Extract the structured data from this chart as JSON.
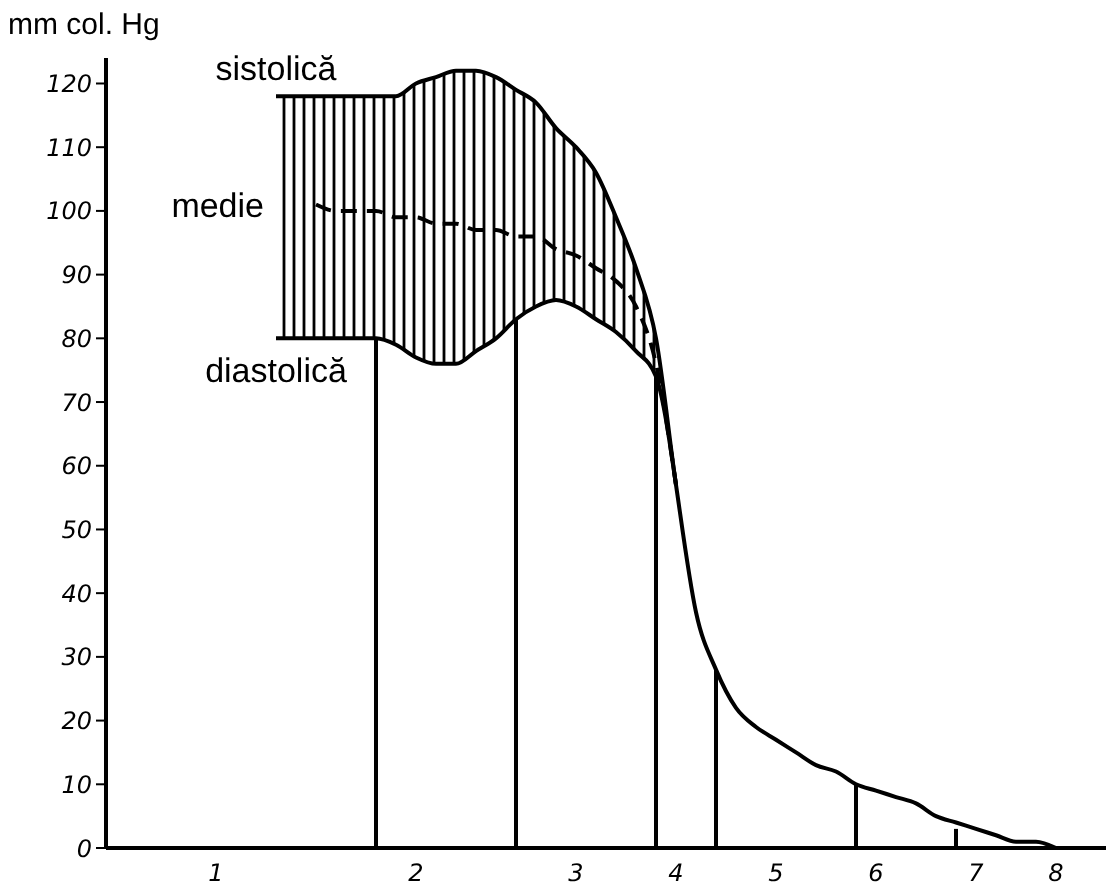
{
  "chart_data": {
    "type": "line",
    "ylabel": "mm col. Hg",
    "ylim": [
      0,
      124
    ],
    "yticks": [
      0,
      10,
      20,
      30,
      40,
      50,
      60,
      70,
      80,
      90,
      100,
      110,
      120
    ],
    "categories": [
      null,
      null,
      null,
      null,
      null,
      "1",
      null,
      null,
      null,
      null,
      null,
      null,
      null,
      null,
      null,
      "2",
      null,
      null,
      null,
      null,
      null,
      null,
      null,
      "3",
      null,
      null,
      null,
      null,
      "4",
      null,
      null,
      null,
      null,
      "5",
      null,
      null,
      null,
      null,
      "6",
      null,
      null,
      null,
      null,
      "7",
      null,
      null,
      null,
      "8",
      null,
      null
    ],
    "series": [
      {
        "name": "sistolică",
        "color": "#000000",
        "line_style": "solid",
        "values": [
          null,
          null,
          null,
          null,
          null,
          null,
          null,
          null,
          118,
          118,
          118,
          118,
          118,
          118,
          118,
          120,
          121,
          122,
          122,
          121,
          119,
          117,
          113,
          110,
          106,
          99,
          91,
          80,
          57,
          37,
          28,
          22,
          19,
          17,
          15,
          13,
          12,
          10,
          9,
          8,
          7,
          5,
          4,
          3,
          2,
          1,
          1,
          0,
          null,
          null
        ]
      },
      {
        "name": "medie",
        "color": "#000000",
        "line_style": "dashed",
        "values": [
          null,
          null,
          null,
          null,
          null,
          null,
          null,
          null,
          null,
          null,
          101,
          100,
          100,
          100,
          99,
          99,
          98,
          98,
          97,
          97,
          96,
          96,
          94,
          93,
          91,
          89,
          85,
          76,
          57,
          null,
          null,
          null,
          null,
          null,
          null,
          null,
          null,
          null,
          null,
          null,
          null,
          null,
          null,
          null,
          null,
          null,
          null,
          null,
          null,
          null
        ],
        "lower": [
          null,
          null,
          null,
          null,
          null,
          null,
          null,
          null,
          80,
          80,
          80,
          80,
          80,
          80,
          79,
          77,
          76,
          76,
          78,
          80,
          83,
          85,
          86,
          85,
          83,
          81,
          78,
          74,
          57,
          null,
          null,
          null,
          null,
          null,
          null,
          null,
          null,
          null,
          null,
          null,
          null,
          null,
          null,
          null,
          null,
          null,
          null,
          null,
          null,
          null
        ],
        "upper": [
          null,
          null,
          null,
          null,
          null,
          null,
          null,
          null,
          118,
          118,
          118,
          118,
          118,
          118,
          118,
          120,
          121,
          122,
          122,
          121,
          119,
          117,
          113,
          110,
          106,
          99,
          91,
          80,
          57,
          null,
          null,
          null,
          null,
          null,
          null,
          null,
          null,
          null,
          null,
          null,
          null,
          null,
          null,
          null,
          null,
          null,
          null,
          null,
          null,
          null
        ]
      },
      {
        "name": "diastolică",
        "color": "#000000",
        "line_style": "solid",
        "values": [
          null,
          null,
          null,
          null,
          null,
          null,
          null,
          null,
          80,
          80,
          80,
          80,
          80,
          80,
          79,
          77,
          76,
          76,
          78,
          80,
          83,
          85,
          86,
          85,
          83,
          81,
          78,
          74,
          57,
          null,
          null,
          null,
          null,
          null,
          null,
          null,
          null,
          null,
          null,
          null,
          null,
          null,
          null,
          null,
          null,
          null,
          null,
          null,
          null,
          null
        ]
      },
      {
        "type": "bar",
        "color": "#000000",
        "values": [
          null,
          null,
          null,
          null,
          null,
          null,
          null,
          null,
          null,
          null,
          null,
          null,
          null,
          80,
          null,
          null,
          null,
          null,
          null,
          null,
          83,
          null,
          null,
          null,
          null,
          null,
          null,
          74,
          null,
          null,
          28,
          null,
          null,
          null,
          null,
          null,
          null,
          10,
          null,
          null,
          null,
          null,
          3,
          null,
          null,
          null,
          null,
          null,
          null,
          null
        ]
      }
    ],
    "grid": false,
    "legend": false,
    "marker": "none"
  }
}
